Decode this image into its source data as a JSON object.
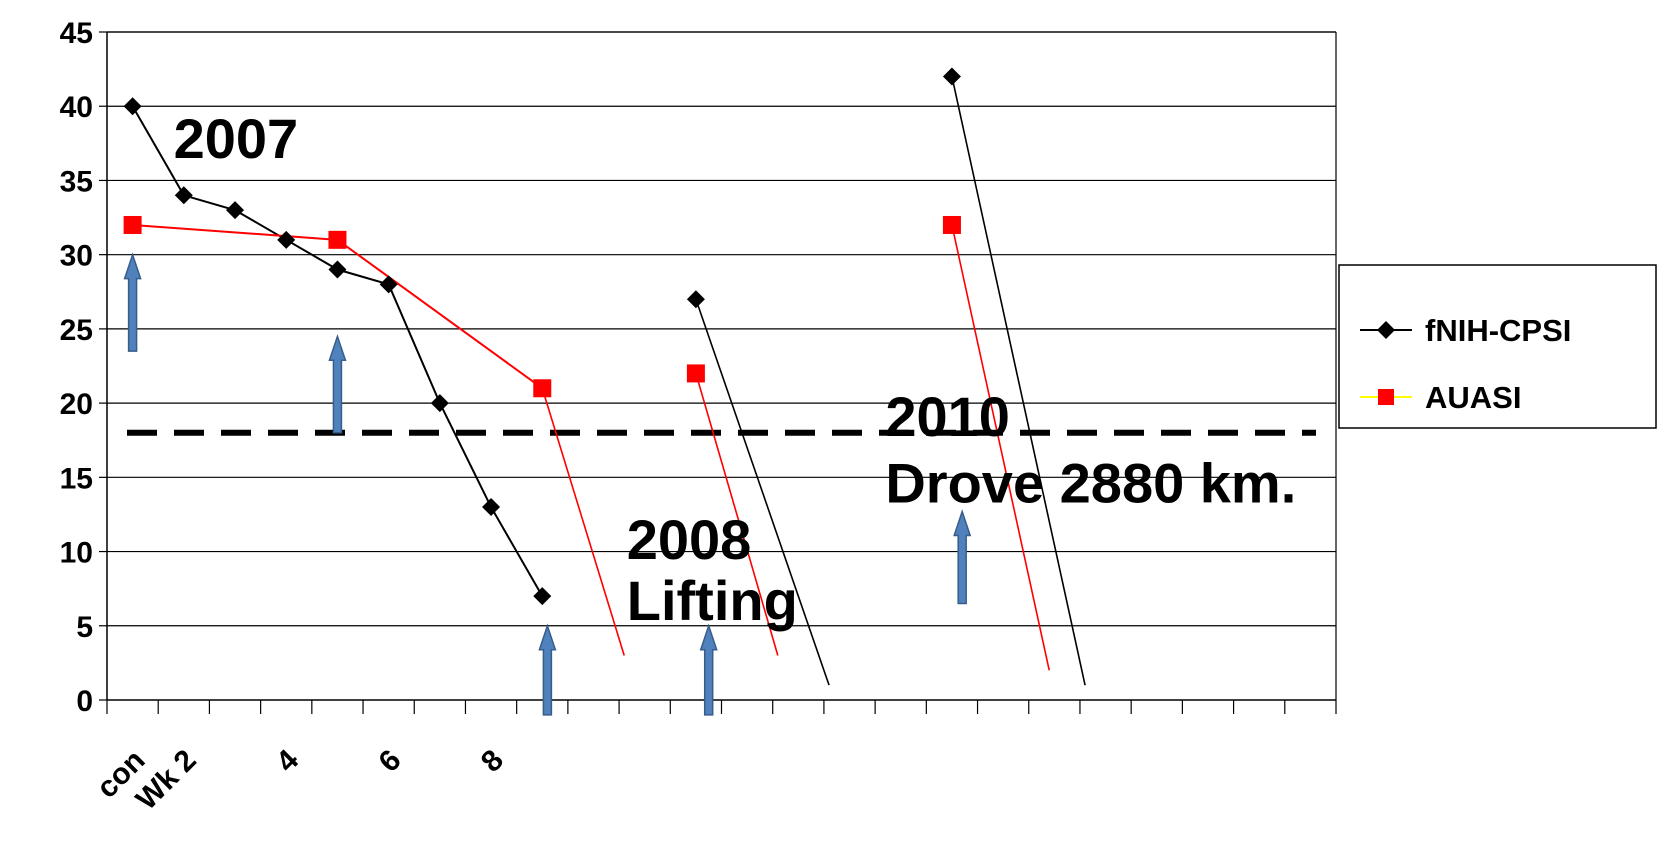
{
  "chart_data": {
    "type": "line",
    "title": "",
    "xlabel": "",
    "ylabel": "",
    "ylim": [
      0,
      45
    ],
    "yticks": [
      0,
      5,
      10,
      15,
      20,
      25,
      30,
      35,
      40,
      45
    ],
    "x_categories": 24,
    "x_tick_labels": [
      {
        "label": "con",
        "index": 0
      },
      {
        "label": "Wk 2",
        "index": 1
      },
      {
        "label": "4",
        "index": 3
      },
      {
        "label": "6",
        "index": 5
      },
      {
        "label": "8",
        "index": 7
      }
    ],
    "grid": "horizontal",
    "legend_position": "right",
    "threshold": {
      "y": 18,
      "style": "dashed",
      "color": "#000000"
    },
    "series": [
      {
        "name": "fNIH-CPSI",
        "color": "#000000",
        "marker": "diamond",
        "points": [
          {
            "x": 0.5,
            "y": 40
          },
          {
            "x": 1.5,
            "y": 34
          },
          {
            "x": 2.5,
            "y": 33
          },
          {
            "x": 3.5,
            "y": 31
          },
          {
            "x": 4.5,
            "y": 29
          },
          {
            "x": 5.5,
            "y": 28
          },
          {
            "x": 6.5,
            "y": 20
          },
          {
            "x": 7.5,
            "y": 13
          },
          {
            "x": 8.5,
            "y": 7
          }
        ],
        "extra_segments": [
          {
            "from": {
              "x": 11.5,
              "y": 27
            },
            "to": {
              "x": 14.1,
              "y": 1
            },
            "marker_at_start": true
          },
          {
            "from": {
              "x": 16.5,
              "y": 42
            },
            "to": {
              "x": 19.1,
              "y": 1
            },
            "marker_at_start": true
          }
        ]
      },
      {
        "name": "AUASI",
        "color": "#ff0000",
        "marker": "square",
        "points": [
          {
            "x": 0.5,
            "y": 32
          },
          {
            "x": 4.5,
            "y": 31
          },
          {
            "x": 8.5,
            "y": 21
          }
        ],
        "extra_segments": [
          {
            "from": {
              "x": 8.5,
              "y": 21
            },
            "to": {
              "x": 10.1,
              "y": 3
            },
            "marker_at_start": false
          },
          {
            "from": {
              "x": 11.5,
              "y": 22
            },
            "to": {
              "x": 13.1,
              "y": 3
            },
            "marker_at_start": true
          },
          {
            "from": {
              "x": 16.5,
              "y": 32
            },
            "to": {
              "x": 18.4,
              "y": 2
            },
            "marker_at_start": true
          }
        ]
      }
    ],
    "arrows": [
      {
        "x": 0.5,
        "y_bottom": 23.5,
        "y_top": 30
      },
      {
        "x": 4.5,
        "y_bottom": 18,
        "y_top": 24.5
      },
      {
        "x": 8.6,
        "y_bottom": -1,
        "y_top": 5
      },
      {
        "x": 11.75,
        "y_bottom": -1,
        "y_top": 5
      },
      {
        "x": 16.7,
        "y_bottom": 6.5,
        "y_top": 12.7
      }
    ],
    "annotations": [
      {
        "text": "2007",
        "x": 1.3,
        "y": 36.5
      },
      {
        "text": "2008",
        "x": 10.15,
        "y": 9.5
      },
      {
        "text": "Lifting",
        "x": 10.15,
        "y": 5.4
      },
      {
        "text": "2010",
        "x": 15.2,
        "y": 17.8
      },
      {
        "text": "Drove  2880 km.",
        "x": 15.2,
        "y": 13.3
      }
    ]
  },
  "colors": {
    "arrow_fill": "#4f81bd",
    "arrow_stroke": "#385d8a",
    "grid": "#000000"
  }
}
